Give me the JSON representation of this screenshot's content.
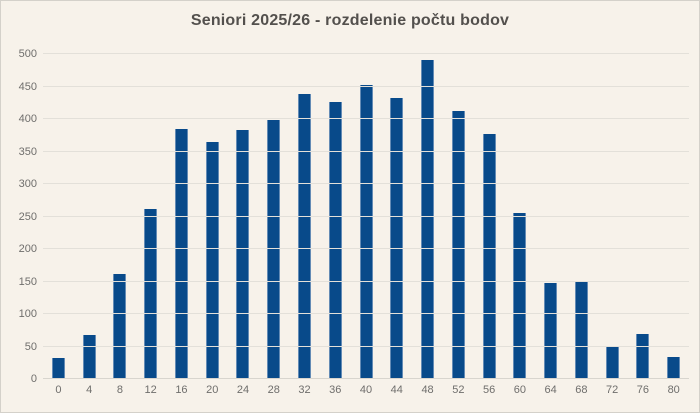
{
  "chart_data": {
    "type": "bar",
    "title": "Seniori 2025/26 - rozdelenie počtu bodov",
    "categories": [
      "0",
      "4",
      "8",
      "12",
      "16",
      "20",
      "24",
      "28",
      "32",
      "36",
      "40",
      "44",
      "48",
      "52",
      "56",
      "60",
      "64",
      "68",
      "72",
      "76",
      "80"
    ],
    "values": [
      32,
      67,
      162,
      261,
      384,
      365,
      383,
      398,
      439,
      426,
      452,
      432,
      490,
      413,
      377,
      256,
      147,
      149,
      49,
      69,
      34
    ],
    "xlabel": "",
    "ylabel": "",
    "ylim": [
      0,
      500
    ],
    "ytick_step": 50,
    "grid": "horizontal",
    "legend": "none",
    "colors": {
      "bar": "#084a8a",
      "background": "#f7f2ea",
      "gridline": "#e3e0d9",
      "axis_line": "#d8d5ce",
      "tick_label": "#6f6e6c",
      "title": "#53504d",
      "frame": "#d4d1ca"
    }
  }
}
